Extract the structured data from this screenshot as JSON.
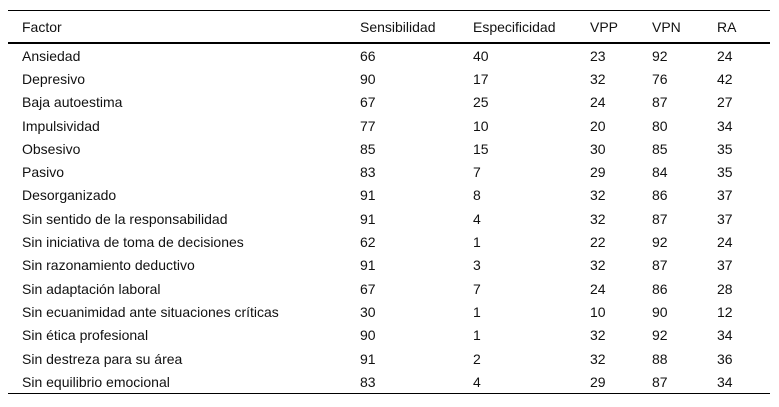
{
  "page": {
    "background_color": "#ffffff",
    "text_color": "#111111",
    "rule_color": "#000000"
  },
  "chart_data": {
    "type": "table",
    "title": "",
    "legend": "none",
    "grid": "horizontal rules only (top rule, header separator rule, bottom rule)",
    "columns": [
      "Factor",
      "Sensibilidad",
      "Especificidad",
      "VPP",
      "VPN",
      "RA"
    ],
    "rows": [
      [
        "Ansiedad",
        "66",
        "40",
        "23",
        "92",
        "24"
      ],
      [
        "Depresivo",
        "90",
        "17",
        "32",
        "76",
        "42"
      ],
      [
        "Baja autoestima",
        "67",
        "25",
        "24",
        "87",
        "27"
      ],
      [
        "Impulsividad",
        "77",
        "10",
        "20",
        "80",
        "34"
      ],
      [
        "Obsesivo",
        "85",
        "15",
        "30",
        "85",
        "35"
      ],
      [
        "Pasivo",
        "83",
        "7",
        "29",
        "84",
        "35"
      ],
      [
        "Desorganizado",
        "91",
        "8",
        "32",
        "86",
        "37"
      ],
      [
        "Sin sentido de la responsabilidad",
        "91",
        "4",
        "32",
        "87",
        "37"
      ],
      [
        "Sin iniciativa de toma de decisiones",
        "62",
        "1",
        "22",
        "92",
        "24"
      ],
      [
        "Sin razonamiento deductivo",
        "91",
        "3",
        "32",
        "87",
        "37"
      ],
      [
        "Sin adaptación laboral",
        "67",
        "7",
        "24",
        "86",
        "28"
      ],
      [
        "Sin ecuanimidad ante situaciones críticas",
        "30",
        "1",
        "10",
        "90",
        "12"
      ],
      [
        "Sin ética profesional",
        "90",
        "1",
        "32",
        "92",
        "34"
      ],
      [
        "Sin destreza para su área",
        "91",
        "2",
        "32",
        "88",
        "36"
      ],
      [
        "Sin equilibrio emocional",
        "83",
        "4",
        "29",
        "87",
        "34"
      ]
    ]
  }
}
